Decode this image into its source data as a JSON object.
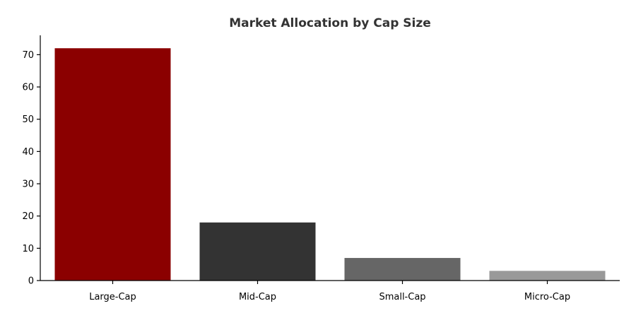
{
  "chart_data": {
    "type": "bar",
    "title": "Market Allocation by Cap Size",
    "xlabel": "",
    "ylabel": "",
    "categories": [
      "Large-Cap",
      "Mid-Cap",
      "Small-Cap",
      "Micro-Cap"
    ],
    "values": [
      72,
      18,
      7,
      3
    ],
    "colors": [
      "#8b0000",
      "#333333",
      "#666666",
      "#999999"
    ],
    "ylim": [
      0,
      76
    ],
    "yticks": [
      0,
      10,
      20,
      30,
      40,
      50,
      60,
      70
    ],
    "grid": false,
    "legend": "none"
  }
}
